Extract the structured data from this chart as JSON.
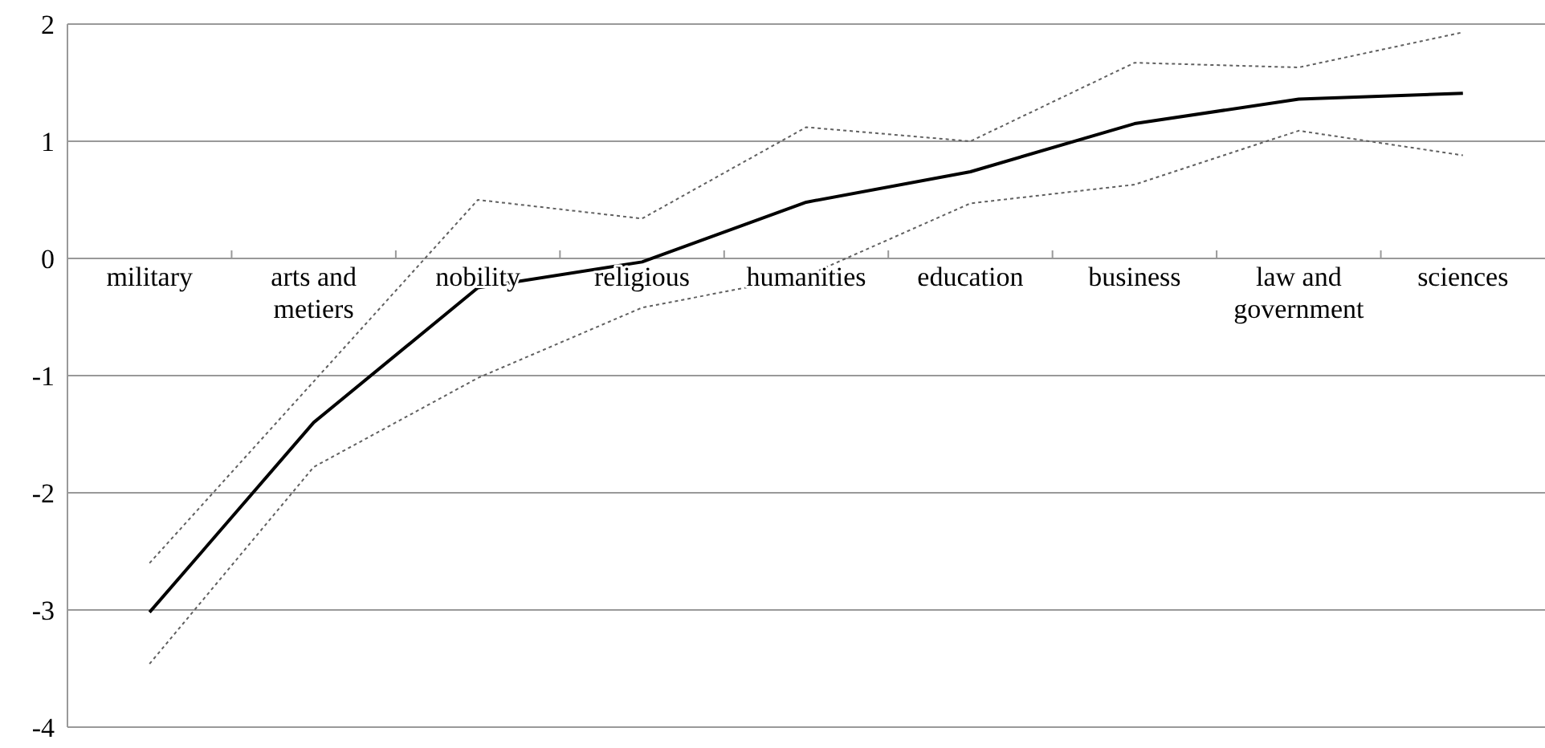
{
  "chart_data": {
    "type": "line",
    "categories": [
      "military",
      "arts and metiers",
      "nobility",
      "religious",
      "humanities",
      "education",
      "business",
      "law and government",
      "sciences"
    ],
    "series": [
      {
        "color": "#000000",
        "line_style": "solid",
        "values": [
          -3.02,
          -1.4,
          -0.25,
          -0.03,
          0.48,
          0.74,
          1.15,
          1.36,
          1.41
        ]
      },
      {
        "color": "#606060",
        "line_style": "dotted",
        "values": [
          -2.6,
          -1.05,
          0.5,
          0.34,
          1.12,
          1.0,
          1.67,
          1.63,
          1.93
        ]
      },
      {
        "color": "#606060",
        "line_style": "dotted",
        "values": [
          -3.46,
          -1.78,
          -1.02,
          -0.42,
          -0.15,
          0.47,
          0.63,
          1.09,
          0.88
        ]
      }
    ],
    "ylim": [
      -4,
      2
    ],
    "yticks": [
      -4,
      -3,
      -2,
      -1,
      0,
      1,
      2
    ],
    "grid": "y",
    "legend": false,
    "marker": "none"
  }
}
